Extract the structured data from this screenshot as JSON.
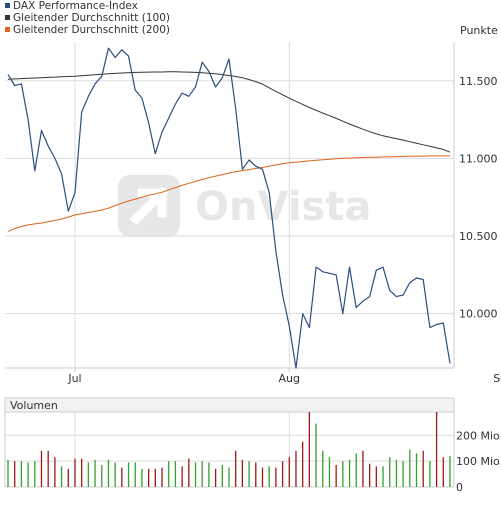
{
  "colors": {
    "index": "#2a4f7f",
    "ma100": "#333333",
    "ma200": "#d9651c",
    "grid": "#dddddd",
    "axis": "#cccccc",
    "text": "#333333",
    "volume_up": "#33a02c",
    "volume_down": "#a01818",
    "panel_bg": "#f2f2f2",
    "watermark": "#e7e7e7"
  },
  "watermark": "OnVista",
  "chart_data": [
    {
      "type": "line",
      "ylabel": "Punkte",
      "ylim": [
        9650,
        11750
      ],
      "yticks": [
        10000,
        10500,
        11000,
        11500
      ],
      "ytick_labels": [
        "10.000",
        "10.500",
        "11.000",
        "11.500"
      ],
      "xtick_labels": [
        "Jul",
        "Aug",
        "Sep"
      ],
      "xtick_index": [
        10,
        42,
        74
      ],
      "legend_position": "top-left",
      "grid": true,
      "series": [
        {
          "name": "DAX Performance-Index",
          "color": "index",
          "values": [
            11540,
            11470,
            11480,
            11250,
            10920,
            11180,
            11080,
            11000,
            10900,
            10660,
            10780,
            11300,
            11400,
            11480,
            11530,
            11710,
            11650,
            11700,
            11660,
            11440,
            11390,
            11230,
            11030,
            11170,
            11260,
            11350,
            11420,
            11400,
            11460,
            11620,
            11560,
            11460,
            11520,
            11640,
            11320,
            10930,
            10990,
            10950,
            10930,
            10780,
            10400,
            10120,
            9920,
            9650,
            10000,
            9910,
            10300,
            10270,
            10260,
            10250,
            10000,
            10300,
            10040,
            10080,
            10110,
            10280,
            10300,
            10150,
            10110,
            10120,
            10200,
            10230,
            10220,
            9910,
            9930,
            9940,
            9680
          ]
        },
        {
          "name": "Gleitender Durchschnitt (100)",
          "color": "ma100",
          "values": [
            11510,
            11512,
            11514,
            11516,
            11518,
            11520,
            11522,
            11524,
            11526,
            11528,
            11530,
            11533,
            11536,
            11539,
            11542,
            11545,
            11548,
            11550,
            11552,
            11554,
            11555,
            11556,
            11557,
            11557,
            11558,
            11558,
            11557,
            11556,
            11554,
            11552,
            11549,
            11545,
            11540,
            11534,
            11528,
            11520,
            11508,
            11495,
            11478,
            11455,
            11432,
            11410,
            11388,
            11368,
            11348,
            11328,
            11310,
            11292,
            11275,
            11258,
            11240,
            11222,
            11205,
            11188,
            11172,
            11158,
            11146,
            11136,
            11128,
            11118,
            11108,
            11098,
            11088,
            11078,
            11068,
            11058,
            11040
          ]
        },
        {
          "name": "Gleitender Durchschnitt (200)",
          "color": "ma200",
          "values": [
            10530,
            10548,
            10562,
            10572,
            10578,
            10584,
            10592,
            10600,
            10610,
            10622,
            10636,
            10644,
            10652,
            10660,
            10668,
            10680,
            10696,
            10712,
            10726,
            10738,
            10750,
            10762,
            10772,
            10782,
            10798,
            10812,
            10826,
            10840,
            10852,
            10864,
            10876,
            10886,
            10896,
            10906,
            10914,
            10922,
            10928,
            10935,
            10942,
            10950,
            10958,
            10966,
            10972,
            10976,
            10980,
            10984,
            10988,
            10992,
            10995,
            10998,
            11000,
            11002,
            11004,
            11006,
            11007,
            11008,
            11010,
            11011,
            11012,
            11013,
            11014,
            11015,
            11015,
            11016,
            11016,
            11016,
            11016
          ]
        }
      ]
    },
    {
      "type": "bar",
      "title": "Volumen",
      "ylim": [
        0,
        290
      ],
      "yticks": [
        0,
        100,
        200
      ],
      "ytick_labels": [
        "0",
        "100 Mio.",
        "200 Mio."
      ],
      "series": [
        {
          "name": "Volumen",
          "values": [
            105,
            100,
            100,
            95,
            100,
            140,
            140,
            115,
            80,
            70,
            110,
            110,
            95,
            105,
            85,
            105,
            95,
            75,
            95,
            95,
            70,
            70,
            70,
            75,
            100,
            100,
            80,
            110,
            95,
            100,
            95,
            70,
            85,
            75,
            140,
            105,
            100,
            95,
            75,
            80,
            75,
            100,
            115,
            140,
            175,
            300,
            245,
            140,
            115,
            85,
            100,
            105,
            130,
            140,
            90,
            80,
            80,
            115,
            105,
            100,
            145,
            130,
            140,
            100,
            300,
            115,
            120
          ],
          "direction": [
            "up",
            "down",
            "up",
            "up",
            "up",
            "down",
            "down",
            "down",
            "up",
            "down",
            "down",
            "down",
            "up",
            "up",
            "up",
            "up",
            "up",
            "down",
            "up",
            "up",
            "up",
            "down",
            "down",
            "down",
            "up",
            "up",
            "down",
            "down",
            "up",
            "up",
            "up",
            "down",
            "up",
            "up",
            "down",
            "down",
            "up",
            "down",
            "down",
            "up",
            "down",
            "down",
            "down",
            "down",
            "down",
            "down",
            "up",
            "up",
            "up",
            "down",
            "up",
            "up",
            "up",
            "down",
            "down",
            "down",
            "up",
            "up",
            "up",
            "up",
            "up",
            "up",
            "down",
            "up",
            "down",
            "down",
            "up"
          ]
        }
      ]
    }
  ]
}
